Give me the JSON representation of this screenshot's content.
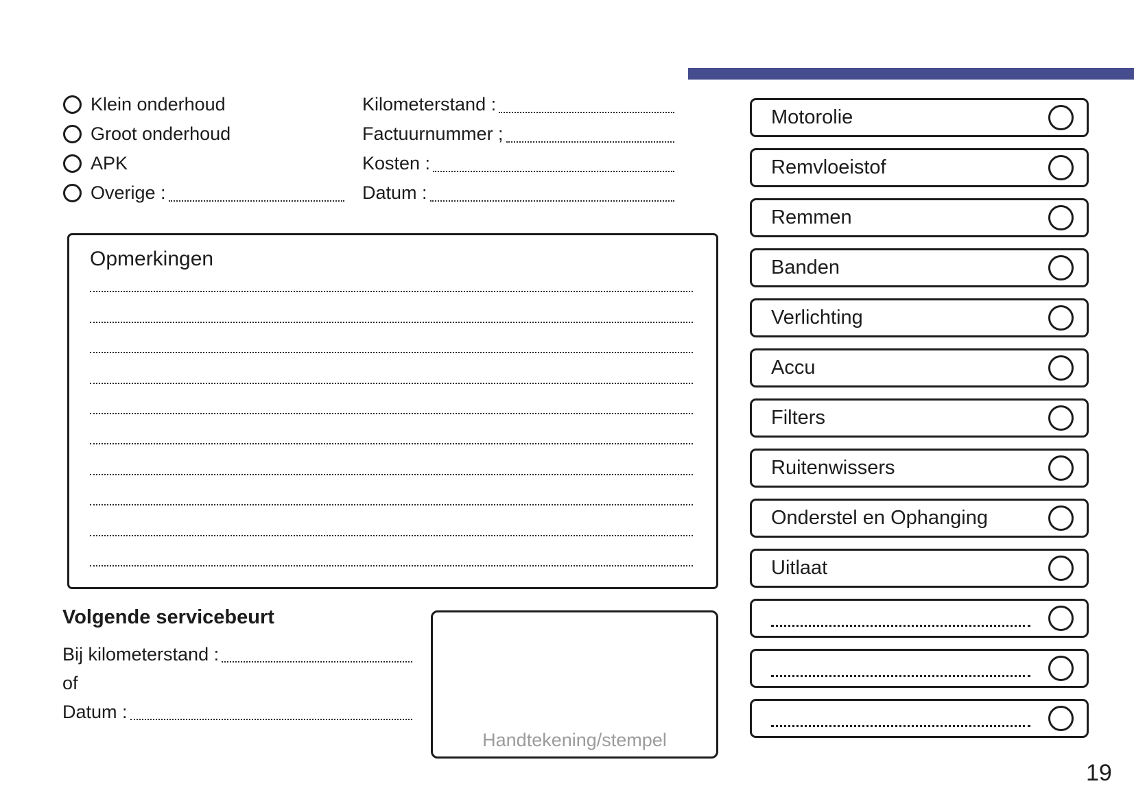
{
  "accent_color": "#464d8f",
  "service_type": {
    "options": [
      {
        "label": "Klein onderhoud",
        "leader": false
      },
      {
        "label": "Groot onderhoud",
        "leader": false
      },
      {
        "label": "APK",
        "leader": false
      },
      {
        "label": "Overige :",
        "leader": true
      }
    ]
  },
  "invoice_fields": [
    {
      "label": "Kilometerstand :"
    },
    {
      "label": "Factuurnummer ;"
    },
    {
      "label": "Kosten :"
    },
    {
      "label": "Datum :"
    }
  ],
  "remarks": {
    "title": "Opmerkingen",
    "line_count": 10
  },
  "next_service": {
    "title": "Volgende servicebeurt",
    "fields": [
      {
        "label": "Bij kilometerstand :",
        "leader": true
      },
      {
        "label": "of",
        "leader": false
      },
      {
        "label": "Datum :",
        "leader": true
      }
    ]
  },
  "signature": {
    "placeholder": "Handtekening/stempel"
  },
  "checklist": {
    "items": [
      {
        "label": "Motorolie",
        "blank": false
      },
      {
        "label": "Remvloeistof",
        "blank": false
      },
      {
        "label": "Remmen",
        "blank": false
      },
      {
        "label": "Banden",
        "blank": false
      },
      {
        "label": "Verlichting",
        "blank": false
      },
      {
        "label": "Accu",
        "blank": false
      },
      {
        "label": "Filters",
        "blank": false
      },
      {
        "label": "Ruitenwissers",
        "blank": false
      },
      {
        "label": "Onderstel en Ophanging",
        "blank": false
      },
      {
        "label": "Uitlaat",
        "blank": false
      },
      {
        "label": "",
        "blank": true
      },
      {
        "label": "",
        "blank": true
      },
      {
        "label": "",
        "blank": true
      }
    ]
  },
  "page": {
    "number": "19"
  }
}
